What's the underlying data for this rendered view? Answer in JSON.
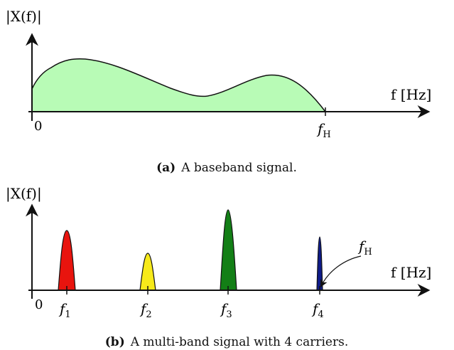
{
  "panel_a": {
    "y_label": "|X(f)|",
    "x_label": "f [Hz]",
    "origin_label": "0",
    "tick_label": {
      "main": "f",
      "sub": "H"
    },
    "caption_tag": "(a)",
    "caption_text": "A baseband signal.",
    "fill_color": "#b8fbb6"
  },
  "panel_b": {
    "y_label": "|X(f)|",
    "x_label": "f [Hz]",
    "origin_label": "0",
    "annotation": {
      "main": "f",
      "sub": "H"
    },
    "ticks": [
      {
        "main": "f",
        "sub": "1"
      },
      {
        "main": "f",
        "sub": "2"
      },
      {
        "main": "f",
        "sub": "3"
      },
      {
        "main": "f",
        "sub": "4"
      }
    ],
    "bands": [
      {
        "name": "band-1",
        "color": "#e8140e"
      },
      {
        "name": "band-2",
        "color": "#f7ea1a"
      },
      {
        "name": "band-3",
        "color": "#137f16"
      },
      {
        "name": "band-4",
        "color": "#0e1b8a"
      }
    ],
    "caption_tag": "(b)",
    "caption_text": "A multi-band signal with 4 carriers."
  }
}
